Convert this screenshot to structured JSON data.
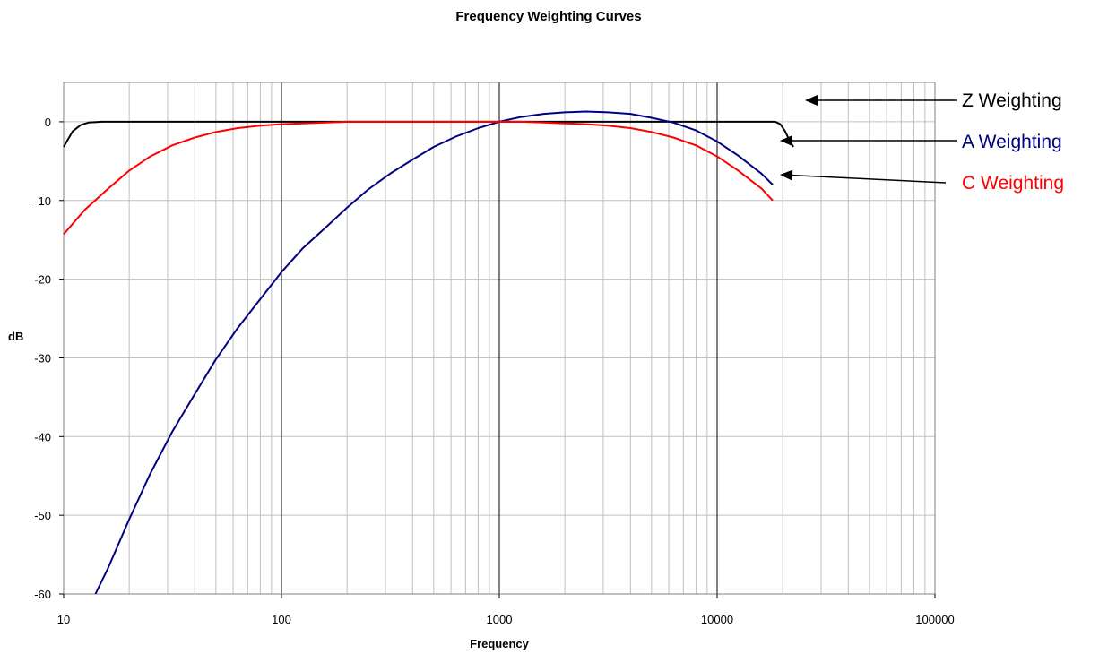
{
  "chart_data": {
    "type": "line",
    "title": "Frequency Weighting Curves",
    "xlabel": "Frequency",
    "ylabel": "dB",
    "x_scale": "log",
    "xlim": [
      10,
      100000
    ],
    "ylim": [
      -60,
      5
    ],
    "x_ticks": [
      "10",
      "100",
      "1000",
      "10000",
      "100000"
    ],
    "y_ticks": [
      "0",
      "-10",
      "-20",
      "-30",
      "-40",
      "-50",
      "-60"
    ],
    "grid": true,
    "legend": "right, annotation arrows",
    "series": [
      {
        "name": "Z Weighting",
        "color": "#000000",
        "points": [
          [
            10,
            -3.2
          ],
          [
            11,
            -1.2
          ],
          [
            12,
            -0.4
          ],
          [
            13,
            -0.1
          ],
          [
            15,
            0
          ],
          [
            20,
            0
          ],
          [
            100,
            0
          ],
          [
            1000,
            0
          ],
          [
            10000,
            0
          ],
          [
            18500,
            0
          ],
          [
            19500,
            -0.3
          ],
          [
            20500,
            -1.2
          ],
          [
            21500,
            -2.4
          ],
          [
            22400,
            -3.2
          ]
        ]
      },
      {
        "name": "A Weighting",
        "color": "#000080",
        "points": [
          [
            14,
            -60
          ],
          [
            16,
            -56.7
          ],
          [
            20,
            -50.5
          ],
          [
            25,
            -44.7
          ],
          [
            31.5,
            -39.4
          ],
          [
            40,
            -34.6
          ],
          [
            50,
            -30.2
          ],
          [
            63,
            -26.2
          ],
          [
            80,
            -22.5
          ],
          [
            100,
            -19.1
          ],
          [
            125,
            -16.1
          ],
          [
            160,
            -13.4
          ],
          [
            200,
            -10.9
          ],
          [
            250,
            -8.6
          ],
          [
            315,
            -6.6
          ],
          [
            400,
            -4.8
          ],
          [
            500,
            -3.2
          ],
          [
            630,
            -1.9
          ],
          [
            800,
            -0.8
          ],
          [
            1000,
            0
          ],
          [
            1250,
            0.6
          ],
          [
            1600,
            1.0
          ],
          [
            2000,
            1.2
          ],
          [
            2500,
            1.3
          ],
          [
            3150,
            1.2
          ],
          [
            4000,
            1.0
          ],
          [
            5000,
            0.5
          ],
          [
            6300,
            -0.1
          ],
          [
            8000,
            -1.1
          ],
          [
            10000,
            -2.5
          ],
          [
            12500,
            -4.3
          ],
          [
            16000,
            -6.6
          ],
          [
            18000,
            -8.0
          ]
        ]
      },
      {
        "name": "C Weighting",
        "color": "#ff0000",
        "points": [
          [
            10,
            -14.3
          ],
          [
            12.5,
            -11.2
          ],
          [
            16,
            -8.5
          ],
          [
            20,
            -6.2
          ],
          [
            25,
            -4.4
          ],
          [
            31.5,
            -3.0
          ],
          [
            40,
            -2.0
          ],
          [
            50,
            -1.3
          ],
          [
            63,
            -0.8
          ],
          [
            80,
            -0.5
          ],
          [
            100,
            -0.3
          ],
          [
            125,
            -0.2
          ],
          [
            160,
            -0.1
          ],
          [
            200,
            0
          ],
          [
            250,
            0
          ],
          [
            315,
            0
          ],
          [
            400,
            0
          ],
          [
            500,
            0
          ],
          [
            630,
            0
          ],
          [
            800,
            0
          ],
          [
            1000,
            0
          ],
          [
            1250,
            0
          ],
          [
            1600,
            -0.1
          ],
          [
            2000,
            -0.2
          ],
          [
            2500,
            -0.3
          ],
          [
            3150,
            -0.5
          ],
          [
            4000,
            -0.8
          ],
          [
            5000,
            -1.3
          ],
          [
            6300,
            -2.0
          ],
          [
            8000,
            -3.0
          ],
          [
            10000,
            -4.4
          ],
          [
            12500,
            -6.2
          ],
          [
            16000,
            -8.5
          ],
          [
            18000,
            -10.0
          ]
        ]
      }
    ]
  }
}
